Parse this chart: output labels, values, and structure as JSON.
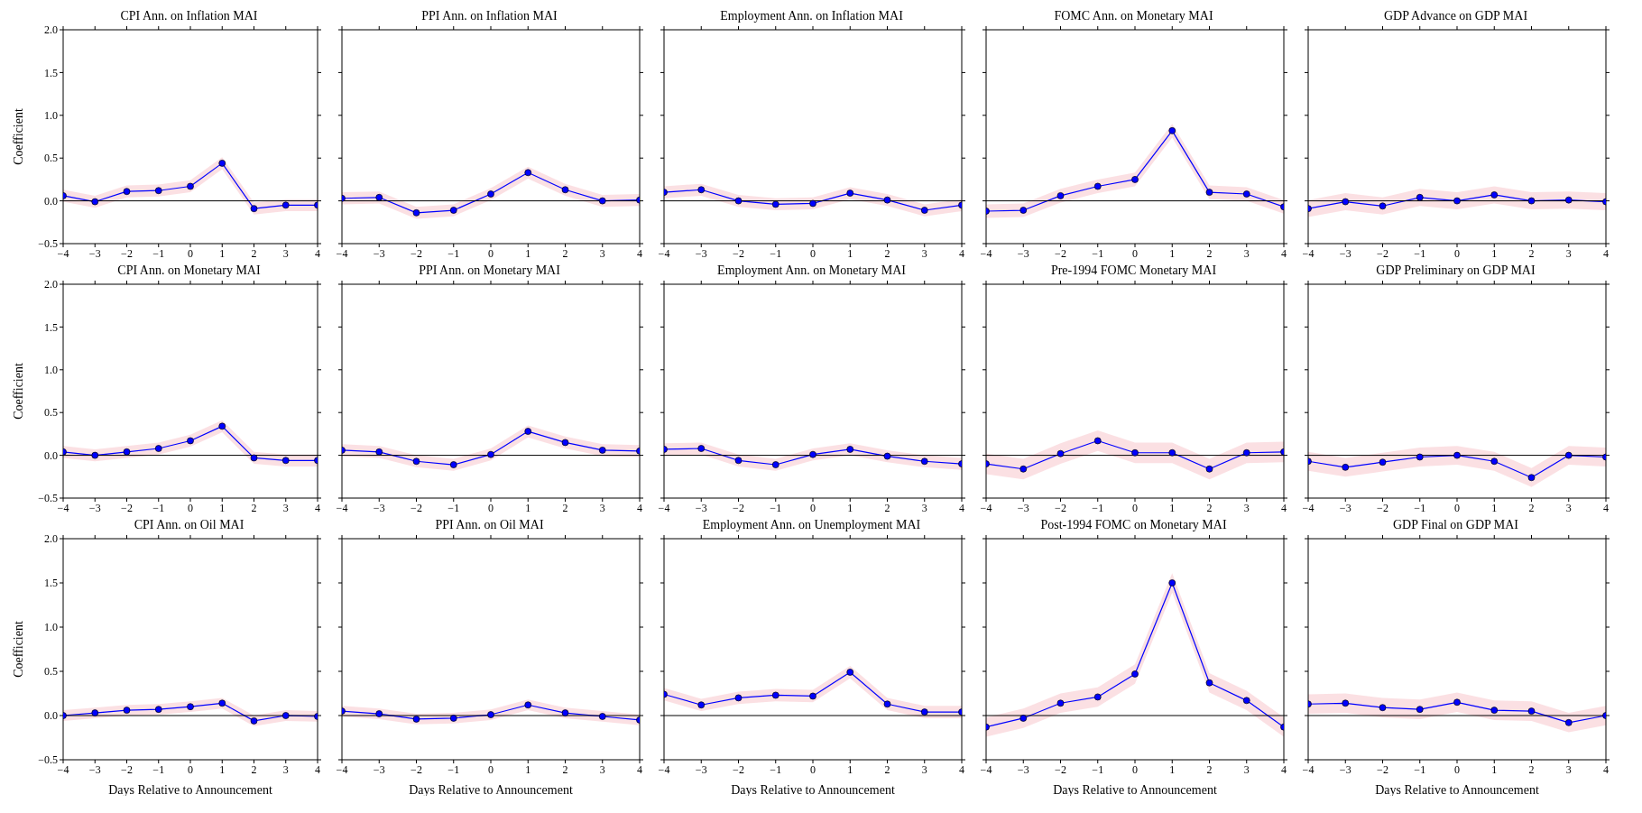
{
  "chart_data": [
    {
      "type": "line",
      "title": "CPI Ann. on Inflation MAI",
      "ylabel": "Coefficient",
      "x": [
        -4,
        -3,
        -2,
        -1,
        0,
        1,
        2,
        3,
        4
      ],
      "xlim": [
        -4,
        4
      ],
      "xticks": [
        {
          "value": -4,
          "label": "−4"
        },
        {
          "value": -3,
          "label": "−3"
        },
        {
          "value": -2,
          "label": "−2"
        },
        {
          "value": -1,
          "label": "−1"
        },
        0,
        1,
        2,
        3,
        4
      ],
      "ylim": [
        -0.5,
        2
      ],
      "yticks": [
        {
          "value": -0.5,
          "label": "−0.5"
        },
        {
          "value": 0,
          "label": "0.0"
        },
        {
          "value": 0.5,
          "label": "0.5"
        },
        {
          "value": 1,
          "label": "1.0"
        },
        {
          "value": 1.5,
          "label": "1.5"
        },
        {
          "value": 2,
          "label": "2.0"
        }
      ],
      "marker": "circle",
      "ref_lines": [
        {
          "axis": "y",
          "value": 0,
          "color": "#000000"
        }
      ],
      "series": [
        {
          "color": "#0000ff",
          "values": [
            0.06,
            -0.01,
            0.11,
            0.12,
            0.17,
            0.44,
            -0.09,
            -0.05,
            -0.05
          ],
          "lower": [
            -0.01,
            -0.08,
            0.04,
            0.05,
            0.1,
            0.37,
            -0.16,
            -0.12,
            -0.12
          ],
          "upper": [
            0.13,
            0.06,
            0.18,
            0.19,
            0.24,
            0.51,
            -0.02,
            0.02,
            0.02
          ]
        }
      ]
    },
    {
      "type": "line",
      "title": "PPI Ann. on Inflation MAI",
      "tick_labels": "x",
      "x": [
        -4,
        -3,
        -2,
        -1,
        0,
        1,
        2,
        3,
        4
      ],
      "xlim": [
        -4,
        4
      ],
      "xticks": [
        {
          "value": -4,
          "label": "−4"
        },
        {
          "value": -3,
          "label": "−3"
        },
        {
          "value": -2,
          "label": "−2"
        },
        {
          "value": -1,
          "label": "−1"
        },
        0,
        1,
        2,
        3,
        4
      ],
      "ylim": [
        -0.5,
        2
      ],
      "yticks": [
        {
          "value": -0.5,
          "label": null
        },
        {
          "value": 0,
          "label": null
        },
        {
          "value": 0.5,
          "label": null
        },
        {
          "value": 1,
          "label": null
        },
        {
          "value": 1.5,
          "label": null
        },
        {
          "value": 2,
          "label": null
        }
      ],
      "marker": "circle",
      "ref_lines": [
        {
          "axis": "y",
          "value": 0,
          "color": "#000000"
        }
      ],
      "series": [
        {
          "color": "#0000ff",
          "values": [
            0.03,
            0.04,
            -0.14,
            -0.11,
            0.08,
            0.33,
            0.13,
            0.0,
            0.01
          ],
          "lower": [
            -0.04,
            -0.03,
            -0.21,
            -0.18,
            0.01,
            0.26,
            0.06,
            -0.07,
            -0.06
          ],
          "upper": [
            0.1,
            0.11,
            -0.07,
            -0.04,
            0.15,
            0.4,
            0.2,
            0.07,
            0.08
          ]
        }
      ]
    },
    {
      "type": "line",
      "title": "Employment Ann. on Inflation MAI",
      "tick_labels": "x",
      "x": [
        -4,
        -3,
        -2,
        -1,
        0,
        1,
        2,
        3,
        4
      ],
      "xlim": [
        -4,
        4
      ],
      "xticks": [
        {
          "value": -4,
          "label": "−4"
        },
        {
          "value": -3,
          "label": "−3"
        },
        {
          "value": -2,
          "label": "−2"
        },
        {
          "value": -1,
          "label": "−1"
        },
        0,
        1,
        2,
        3,
        4
      ],
      "ylim": [
        -0.5,
        2
      ],
      "yticks": [
        {
          "value": -0.5,
          "label": null
        },
        {
          "value": 0,
          "label": null
        },
        {
          "value": 0.5,
          "label": null
        },
        {
          "value": 1,
          "label": null
        },
        {
          "value": 1.5,
          "label": null
        },
        {
          "value": 2,
          "label": null
        }
      ],
      "marker": "circle",
      "ref_lines": [
        {
          "axis": "y",
          "value": 0,
          "color": "#000000"
        }
      ],
      "series": [
        {
          "color": "#0000ff",
          "values": [
            0.1,
            0.13,
            0.0,
            -0.04,
            -0.03,
            0.09,
            0.01,
            -0.11,
            -0.05
          ],
          "lower": [
            0.03,
            0.06,
            -0.07,
            -0.11,
            -0.1,
            0.02,
            -0.06,
            -0.18,
            -0.12
          ],
          "upper": [
            0.17,
            0.2,
            0.07,
            0.03,
            0.04,
            0.16,
            0.08,
            -0.04,
            0.02
          ]
        }
      ]
    },
    {
      "type": "line",
      "title": "FOMC Ann. on Monetary MAI",
      "tick_labels": "x",
      "x": [
        -4,
        -3,
        -2,
        -1,
        0,
        1,
        2,
        3,
        4
      ],
      "xlim": [
        -4,
        4
      ],
      "xticks": [
        {
          "value": -4,
          "label": "−4"
        },
        {
          "value": -3,
          "label": "−3"
        },
        {
          "value": -2,
          "label": "−2"
        },
        {
          "value": -1,
          "label": "−1"
        },
        0,
        1,
        2,
        3,
        4
      ],
      "ylim": [
        -0.5,
        2
      ],
      "yticks": [
        {
          "value": -0.5,
          "label": null
        },
        {
          "value": 0,
          "label": null
        },
        {
          "value": 0.5,
          "label": null
        },
        {
          "value": 1,
          "label": null
        },
        {
          "value": 1.5,
          "label": null
        },
        {
          "value": 2,
          "label": null
        }
      ],
      "marker": "circle",
      "ref_lines": [
        {
          "axis": "y",
          "value": 0,
          "color": "#000000"
        }
      ],
      "series": [
        {
          "color": "#0000ff",
          "values": [
            -0.12,
            -0.11,
            0.06,
            0.17,
            0.25,
            0.82,
            0.1,
            0.08,
            -0.07
          ],
          "lower": [
            -0.2,
            -0.19,
            -0.02,
            0.09,
            0.17,
            0.74,
            0.02,
            0.0,
            -0.15
          ],
          "upper": [
            -0.04,
            -0.03,
            0.14,
            0.25,
            0.33,
            0.9,
            0.18,
            0.16,
            0.01
          ]
        }
      ]
    },
    {
      "type": "line",
      "title": "GDP Advance on GDP MAI",
      "tick_labels": "x",
      "x": [
        -4,
        -3,
        -2,
        -1,
        0,
        1,
        2,
        3,
        4
      ],
      "xlim": [
        -4,
        4
      ],
      "xticks": [
        {
          "value": -4,
          "label": "−4"
        },
        {
          "value": -3,
          "label": "−3"
        },
        {
          "value": -2,
          "label": "−2"
        },
        {
          "value": -1,
          "label": "−1"
        },
        0,
        1,
        2,
        3,
        4
      ],
      "ylim": [
        -0.5,
        2
      ],
      "yticks": [
        {
          "value": -0.5,
          "label": null
        },
        {
          "value": 0,
          "label": null
        },
        {
          "value": 0.5,
          "label": null
        },
        {
          "value": 1,
          "label": null
        },
        {
          "value": 1.5,
          "label": null
        },
        {
          "value": 2,
          "label": null
        }
      ],
      "marker": "circle",
      "ref_lines": [
        {
          "axis": "y",
          "value": 0,
          "color": "#000000"
        }
      ],
      "series": [
        {
          "color": "#0000ff",
          "values": [
            -0.09,
            -0.01,
            -0.06,
            0.04,
            0.0,
            0.07,
            0.0,
            0.01,
            -0.01
          ],
          "lower": [
            -0.19,
            -0.11,
            -0.16,
            -0.06,
            -0.1,
            -0.03,
            -0.1,
            -0.09,
            -0.11
          ],
          "upper": [
            0.01,
            0.09,
            0.04,
            0.14,
            0.1,
            0.17,
            0.1,
            0.11,
            0.09
          ]
        }
      ]
    },
    {
      "type": "line",
      "title": "CPI Ann. on Monetary MAI",
      "ylabel": "Coefficient",
      "x": [
        -4,
        -3,
        -2,
        -1,
        0,
        1,
        2,
        3,
        4
      ],
      "xlim": [
        -4,
        4
      ],
      "xticks": [
        {
          "value": -4,
          "label": "−4"
        },
        {
          "value": -3,
          "label": "−3"
        },
        {
          "value": -2,
          "label": "−2"
        },
        {
          "value": -1,
          "label": "−1"
        },
        0,
        1,
        2,
        3,
        4
      ],
      "ylim": [
        -0.5,
        2
      ],
      "yticks": [
        {
          "value": -0.5,
          "label": "−0.5"
        },
        {
          "value": 0,
          "label": "0.0"
        },
        {
          "value": 0.5,
          "label": "0.5"
        },
        {
          "value": 1,
          "label": "1.0"
        },
        {
          "value": 1.5,
          "label": "1.5"
        },
        {
          "value": 2,
          "label": "2.0"
        }
      ],
      "marker": "circle",
      "ref_lines": [
        {
          "axis": "y",
          "value": 0,
          "color": "#000000"
        }
      ],
      "series": [
        {
          "color": "#0000ff",
          "values": [
            0.04,
            0.0,
            0.04,
            0.08,
            0.17,
            0.34,
            -0.03,
            -0.06,
            -0.06
          ],
          "lower": [
            -0.03,
            -0.07,
            -0.03,
            0.01,
            0.1,
            0.27,
            -0.1,
            -0.13,
            -0.13
          ],
          "upper": [
            0.11,
            0.07,
            0.11,
            0.15,
            0.24,
            0.41,
            0.04,
            0.01,
            0.01
          ]
        }
      ]
    },
    {
      "type": "line",
      "title": "PPI Ann. on Monetary MAI",
      "tick_labels": "x",
      "x": [
        -4,
        -3,
        -2,
        -1,
        0,
        1,
        2,
        3,
        4
      ],
      "xlim": [
        -4,
        4
      ],
      "xticks": [
        {
          "value": -4,
          "label": "−4"
        },
        {
          "value": -3,
          "label": "−3"
        },
        {
          "value": -2,
          "label": "−2"
        },
        {
          "value": -1,
          "label": "−1"
        },
        0,
        1,
        2,
        3,
        4
      ],
      "ylim": [
        -0.5,
        2
      ],
      "yticks": [
        {
          "value": -0.5,
          "label": null
        },
        {
          "value": 0,
          "label": null
        },
        {
          "value": 0.5,
          "label": null
        },
        {
          "value": 1,
          "label": null
        },
        {
          "value": 1.5,
          "label": null
        },
        {
          "value": 2,
          "label": null
        }
      ],
      "marker": "circle",
      "ref_lines": [
        {
          "axis": "y",
          "value": 0,
          "color": "#000000"
        }
      ],
      "series": [
        {
          "color": "#0000ff",
          "values": [
            0.06,
            0.04,
            -0.07,
            -0.11,
            0.01,
            0.28,
            0.15,
            0.06,
            0.05
          ],
          "lower": [
            -0.01,
            -0.03,
            -0.14,
            -0.18,
            -0.06,
            0.21,
            0.08,
            -0.01,
            -0.02
          ],
          "upper": [
            0.13,
            0.11,
            0.0,
            -0.04,
            0.08,
            0.35,
            0.22,
            0.13,
            0.12
          ]
        }
      ]
    },
    {
      "type": "line",
      "title": "Employment Ann. on Monetary MAI",
      "tick_labels": "x",
      "x": [
        -4,
        -3,
        -2,
        -1,
        0,
        1,
        2,
        3,
        4
      ],
      "xlim": [
        -4,
        4
      ],
      "xticks": [
        {
          "value": -4,
          "label": "−4"
        },
        {
          "value": -3,
          "label": "−3"
        },
        {
          "value": -2,
          "label": "−2"
        },
        {
          "value": -1,
          "label": "−1"
        },
        0,
        1,
        2,
        3,
        4
      ],
      "ylim": [
        -0.5,
        2
      ],
      "yticks": [
        {
          "value": -0.5,
          "label": null
        },
        {
          "value": 0,
          "label": null
        },
        {
          "value": 0.5,
          "label": null
        },
        {
          "value": 1,
          "label": null
        },
        {
          "value": 1.5,
          "label": null
        },
        {
          "value": 2,
          "label": null
        }
      ],
      "marker": "circle",
      "ref_lines": [
        {
          "axis": "y",
          "value": 0,
          "color": "#000000"
        }
      ],
      "series": [
        {
          "color": "#0000ff",
          "values": [
            0.07,
            0.08,
            -0.06,
            -0.11,
            0.01,
            0.07,
            -0.01,
            -0.07,
            -0.1
          ],
          "lower": [
            0.0,
            0.01,
            -0.13,
            -0.18,
            -0.06,
            0.0,
            -0.08,
            -0.14,
            -0.17
          ],
          "upper": [
            0.14,
            0.15,
            0.01,
            -0.04,
            0.08,
            0.14,
            0.06,
            0.0,
            -0.03
          ]
        }
      ]
    },
    {
      "type": "line",
      "title": "Pre-1994 FOMC Monetary MAI",
      "tick_labels": "x",
      "x": [
        -4,
        -3,
        -2,
        -1,
        0,
        1,
        2,
        3,
        4
      ],
      "xlim": [
        -4,
        4
      ],
      "xticks": [
        {
          "value": -4,
          "label": "−4"
        },
        {
          "value": -3,
          "label": "−3"
        },
        {
          "value": -2,
          "label": "−2"
        },
        {
          "value": -1,
          "label": "−1"
        },
        0,
        1,
        2,
        3,
        4
      ],
      "ylim": [
        -0.5,
        2
      ],
      "yticks": [
        {
          "value": -0.5,
          "label": null
        },
        {
          "value": 0,
          "label": null
        },
        {
          "value": 0.5,
          "label": null
        },
        {
          "value": 1,
          "label": null
        },
        {
          "value": 1.5,
          "label": null
        },
        {
          "value": 2,
          "label": null
        }
      ],
      "marker": "circle",
      "ref_lines": [
        {
          "axis": "y",
          "value": 0,
          "color": "#000000"
        }
      ],
      "series": [
        {
          "color": "#0000ff",
          "values": [
            -0.1,
            -0.16,
            0.02,
            0.17,
            0.03,
            0.03,
            -0.16,
            0.03,
            0.04
          ],
          "lower": [
            -0.22,
            -0.28,
            -0.1,
            0.05,
            -0.09,
            -0.09,
            -0.28,
            -0.09,
            -0.08
          ],
          "upper": [
            0.02,
            -0.04,
            0.14,
            0.29,
            0.15,
            0.15,
            -0.04,
            0.15,
            0.16
          ]
        }
      ]
    },
    {
      "type": "line",
      "title": "GDP Preliminary on GDP MAI",
      "tick_labels": "x",
      "x": [
        -4,
        -3,
        -2,
        -1,
        0,
        1,
        2,
        3,
        4
      ],
      "xlim": [
        -4,
        4
      ],
      "xticks": [
        {
          "value": -4,
          "label": "−4"
        },
        {
          "value": -3,
          "label": "−3"
        },
        {
          "value": -2,
          "label": "−2"
        },
        {
          "value": -1,
          "label": "−1"
        },
        0,
        1,
        2,
        3,
        4
      ],
      "ylim": [
        -0.5,
        2
      ],
      "yticks": [
        {
          "value": -0.5,
          "label": null
        },
        {
          "value": 0,
          "label": null
        },
        {
          "value": 0.5,
          "label": null
        },
        {
          "value": 1,
          "label": null
        },
        {
          "value": 1.5,
          "label": null
        },
        {
          "value": 2,
          "label": null
        }
      ],
      "marker": "circle",
      "ref_lines": [
        {
          "axis": "y",
          "value": 0,
          "color": "#000000"
        }
      ],
      "series": [
        {
          "color": "#0000ff",
          "values": [
            -0.07,
            -0.14,
            -0.08,
            -0.02,
            0.0,
            -0.07,
            -0.26,
            0.0,
            -0.02
          ],
          "lower": [
            -0.18,
            -0.25,
            -0.19,
            -0.13,
            -0.11,
            -0.18,
            -0.37,
            -0.11,
            -0.13
          ],
          "upper": [
            0.04,
            -0.03,
            0.03,
            0.09,
            0.11,
            0.04,
            -0.15,
            0.11,
            0.09
          ]
        }
      ]
    },
    {
      "type": "line",
      "title": "CPI Ann. on Oil MAI",
      "ylabel": "Coefficient",
      "xlabel": "Days Relative to Announcement",
      "x": [
        -4,
        -3,
        -2,
        -1,
        0,
        1,
        2,
        3,
        4
      ],
      "xlim": [
        -4,
        4
      ],
      "xticks": [
        {
          "value": -4,
          "label": "−4"
        },
        {
          "value": -3,
          "label": "−3"
        },
        {
          "value": -2,
          "label": "−2"
        },
        {
          "value": -1,
          "label": "−1"
        },
        0,
        1,
        2,
        3,
        4
      ],
      "ylim": [
        -0.5,
        2
      ],
      "yticks": [
        {
          "value": -0.5,
          "label": "−0.5"
        },
        {
          "value": 0,
          "label": "0.0"
        },
        {
          "value": 0.5,
          "label": "0.5"
        },
        {
          "value": 1,
          "label": "1.0"
        },
        {
          "value": 1.5,
          "label": "1.5"
        },
        {
          "value": 2,
          "label": "2.0"
        }
      ],
      "marker": "circle",
      "ref_lines": [
        {
          "axis": "y",
          "value": 0,
          "color": "#000000"
        }
      ],
      "series": [
        {
          "color": "#0000ff",
          "values": [
            0.0,
            0.03,
            0.06,
            0.07,
            0.1,
            0.14,
            -0.06,
            0.0,
            -0.01
          ],
          "lower": [
            -0.06,
            -0.03,
            0.0,
            0.01,
            0.04,
            0.08,
            -0.12,
            -0.06,
            -0.07
          ],
          "upper": [
            0.06,
            0.09,
            0.12,
            0.13,
            0.16,
            0.2,
            0.0,
            0.06,
            0.05
          ]
        }
      ]
    },
    {
      "type": "line",
      "title": "PPI Ann. on Oil MAI",
      "xlabel": "Days Relative to Announcement",
      "tick_labels": "x",
      "x": [
        -4,
        -3,
        -2,
        -1,
        0,
        1,
        2,
        3,
        4
      ],
      "xlim": [
        -4,
        4
      ],
      "xticks": [
        {
          "value": -4,
          "label": "−4"
        },
        {
          "value": -3,
          "label": "−3"
        },
        {
          "value": -2,
          "label": "−2"
        },
        {
          "value": -1,
          "label": "−1"
        },
        0,
        1,
        2,
        3,
        4
      ],
      "ylim": [
        -0.5,
        2
      ],
      "yticks": [
        {
          "value": -0.5,
          "label": null
        },
        {
          "value": 0,
          "label": null
        },
        {
          "value": 0.5,
          "label": null
        },
        {
          "value": 1,
          "label": null
        },
        {
          "value": 1.5,
          "label": null
        },
        {
          "value": 2,
          "label": null
        }
      ],
      "marker": "circle",
      "ref_lines": [
        {
          "axis": "y",
          "value": 0,
          "color": "#000000"
        }
      ],
      "series": [
        {
          "color": "#0000ff",
          "values": [
            0.05,
            0.02,
            -0.04,
            -0.03,
            0.01,
            0.12,
            0.03,
            -0.01,
            -0.05
          ],
          "lower": [
            -0.01,
            -0.04,
            -0.1,
            -0.09,
            -0.05,
            0.06,
            -0.03,
            -0.07,
            -0.11
          ],
          "upper": [
            0.11,
            0.08,
            0.02,
            0.03,
            0.07,
            0.18,
            0.09,
            0.05,
            0.01
          ]
        }
      ]
    },
    {
      "type": "line",
      "title": "Employment Ann. on Unemployment MAI",
      "xlabel": "Days Relative to Announcement",
      "tick_labels": "x",
      "x": [
        -4,
        -3,
        -2,
        -1,
        0,
        1,
        2,
        3,
        4
      ],
      "xlim": [
        -4,
        4
      ],
      "xticks": [
        {
          "value": -4,
          "label": "−4"
        },
        {
          "value": -3,
          "label": "−3"
        },
        {
          "value": -2,
          "label": "−2"
        },
        {
          "value": -1,
          "label": "−1"
        },
        0,
        1,
        2,
        3,
        4
      ],
      "ylim": [
        -0.5,
        2
      ],
      "yticks": [
        {
          "value": -0.5,
          "label": null
        },
        {
          "value": 0,
          "label": null
        },
        {
          "value": 0.5,
          "label": null
        },
        {
          "value": 1,
          "label": null
        },
        {
          "value": 1.5,
          "label": null
        },
        {
          "value": 2,
          "label": null
        }
      ],
      "marker": "circle",
      "ref_lines": [
        {
          "axis": "y",
          "value": 0,
          "color": "#000000"
        }
      ],
      "series": [
        {
          "color": "#0000ff",
          "values": [
            0.24,
            0.12,
            0.2,
            0.23,
            0.22,
            0.49,
            0.13,
            0.04,
            0.04
          ],
          "lower": [
            0.17,
            0.05,
            0.13,
            0.16,
            0.15,
            0.42,
            0.06,
            -0.03,
            -0.03
          ],
          "upper": [
            0.31,
            0.19,
            0.27,
            0.3,
            0.29,
            0.56,
            0.2,
            0.11,
            0.11
          ]
        }
      ]
    },
    {
      "type": "line",
      "title": "Post-1994 FOMC on Monetary MAI",
      "xlabel": "Days Relative to Announcement",
      "tick_labels": "x",
      "x": [
        -4,
        -3,
        -2,
        -1,
        0,
        1,
        2,
        3,
        4
      ],
      "xlim": [
        -4,
        4
      ],
      "xticks": [
        {
          "value": -4,
          "label": "−4"
        },
        {
          "value": -3,
          "label": "−3"
        },
        {
          "value": -2,
          "label": "−2"
        },
        {
          "value": -1,
          "label": "−1"
        },
        0,
        1,
        2,
        3,
        4
      ],
      "ylim": [
        -0.5,
        2
      ],
      "yticks": [
        {
          "value": -0.5,
          "label": null
        },
        {
          "value": 0,
          "label": null
        },
        {
          "value": 0.5,
          "label": null
        },
        {
          "value": 1,
          "label": null
        },
        {
          "value": 1.5,
          "label": null
        },
        {
          "value": 2,
          "label": null
        }
      ],
      "marker": "circle",
      "ref_lines": [
        {
          "axis": "y",
          "value": 0,
          "color": "#000000"
        }
      ],
      "series": [
        {
          "color": "#0000ff",
          "values": [
            -0.13,
            -0.03,
            0.14,
            0.21,
            0.47,
            1.5,
            0.37,
            0.17,
            -0.13
          ],
          "lower": [
            -0.24,
            -0.14,
            0.03,
            0.1,
            0.36,
            1.39,
            0.26,
            0.06,
            -0.24
          ],
          "upper": [
            -0.02,
            0.08,
            0.25,
            0.32,
            0.58,
            1.61,
            0.48,
            0.28,
            -0.02
          ]
        }
      ]
    },
    {
      "type": "line",
      "title": "GDP Final on GDP MAI",
      "xlabel": "Days Relative to Announcement",
      "tick_labels": "x",
      "x": [
        -4,
        -3,
        -2,
        -1,
        0,
        1,
        2,
        3,
        4
      ],
      "xlim": [
        -4,
        4
      ],
      "xticks": [
        {
          "value": -4,
          "label": "−4"
        },
        {
          "value": -3,
          "label": "−3"
        },
        {
          "value": -2,
          "label": "−2"
        },
        {
          "value": -1,
          "label": "−1"
        },
        0,
        1,
        2,
        3,
        4
      ],
      "ylim": [
        -0.5,
        2
      ],
      "yticks": [
        {
          "value": -0.5,
          "label": null
        },
        {
          "value": 0,
          "label": null
        },
        {
          "value": 0.5,
          "label": null
        },
        {
          "value": 1,
          "label": null
        },
        {
          "value": 1.5,
          "label": null
        },
        {
          "value": 2,
          "label": null
        }
      ],
      "marker": "circle",
      "ref_lines": [
        {
          "axis": "y",
          "value": 0,
          "color": "#000000"
        }
      ],
      "series": [
        {
          "color": "#0000ff",
          "values": [
            0.13,
            0.14,
            0.09,
            0.07,
            0.15,
            0.06,
            0.05,
            -0.08,
            0.0
          ],
          "lower": [
            0.02,
            0.03,
            -0.02,
            -0.04,
            0.04,
            -0.05,
            -0.06,
            -0.19,
            -0.11
          ],
          "upper": [
            0.24,
            0.25,
            0.2,
            0.18,
            0.26,
            0.17,
            0.16,
            0.03,
            0.11
          ]
        }
      ]
    }
  ]
}
